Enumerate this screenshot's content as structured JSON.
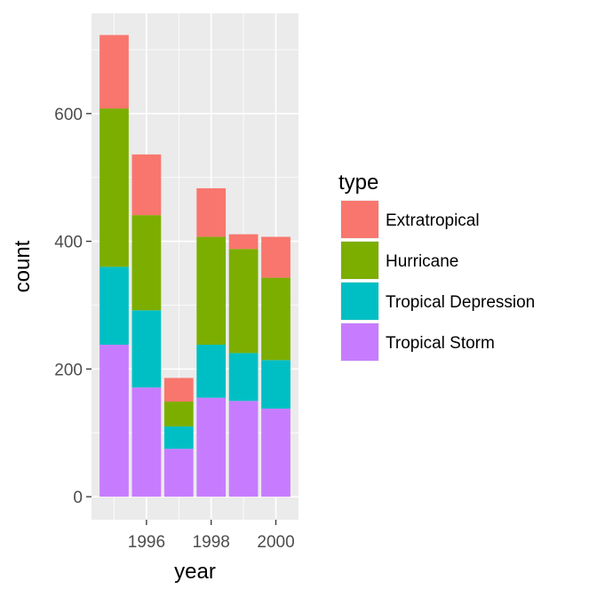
{
  "chart_data": {
    "type": "bar",
    "stacked": true,
    "title": "",
    "xlabel": "year",
    "ylabel": "count",
    "categories": [
      1995,
      1996,
      1997,
      1998,
      1999,
      2000
    ],
    "x_ticks": [
      1996,
      1998,
      2000
    ],
    "y_ticks": [
      0,
      200,
      400,
      600
    ],
    "xlim": [
      1994.3,
      2000.7
    ],
    "ylim": [
      -36,
      757
    ],
    "grid": true,
    "legend_placement": "right",
    "legend_title": "type",
    "series": [
      {
        "name": "Tropical Storm",
        "color": "#C77CFF",
        "values": [
          238,
          171,
          75,
          155,
          150,
          138
        ]
      },
      {
        "name": "Tropical Depression",
        "color": "#00BFC4",
        "values": [
          122,
          121,
          35,
          83,
          75,
          76
        ]
      },
      {
        "name": "Hurricane",
        "color": "#7CAE00",
        "values": [
          248,
          149,
          39,
          169,
          163,
          129
        ]
      },
      {
        "name": "Extratropical",
        "color": "#F8766D",
        "values": [
          115,
          95,
          37,
          76,
          23,
          64
        ]
      }
    ],
    "legend_order": [
      "Extratropical",
      "Hurricane",
      "Tropical Depression",
      "Tropical Storm"
    ]
  }
}
